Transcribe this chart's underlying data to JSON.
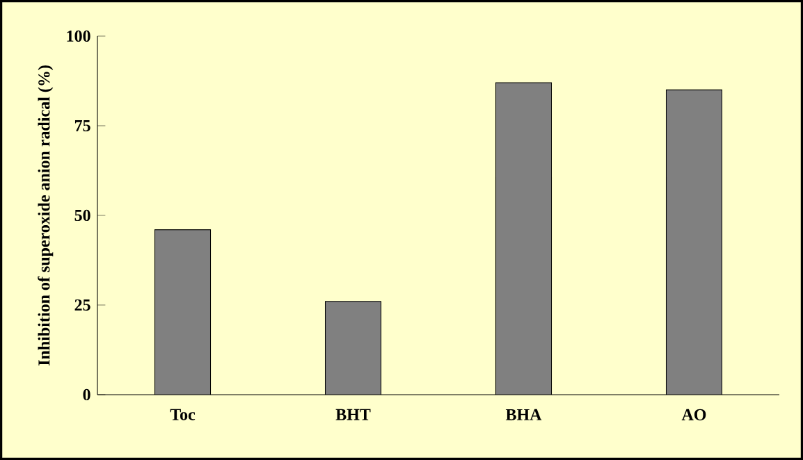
{
  "chart_data": {
    "type": "bar",
    "ylabel": "Inhibition of superoxide anion radical (%)",
    "categories": [
      "Toc",
      "BHT",
      "BHA",
      "AO"
    ],
    "values": [
      46,
      26,
      87,
      85
    ],
    "color": "#808080",
    "ylim": [
      0,
      100
    ],
    "yticks": [
      0,
      25,
      50,
      75,
      100
    ],
    "grid": false
  }
}
